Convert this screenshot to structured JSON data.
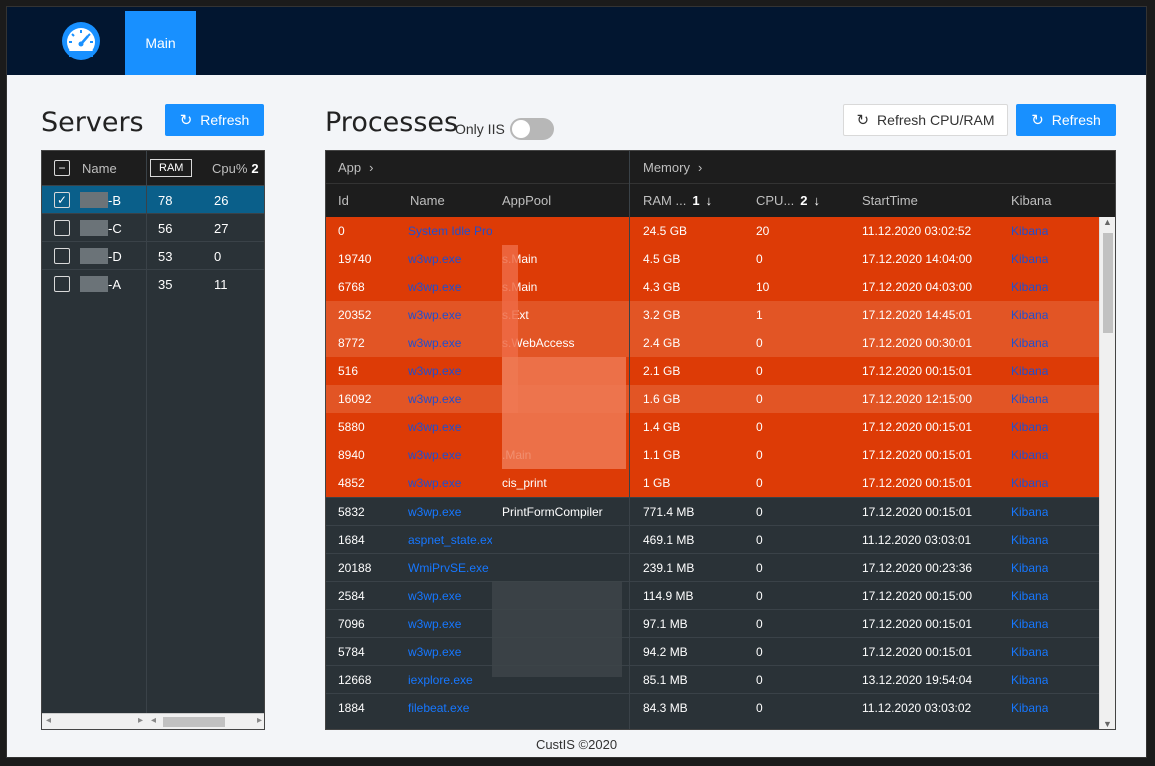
{
  "nav": {
    "tab_main": "Main"
  },
  "servers": {
    "title": "Servers",
    "refresh_label": "Refresh",
    "columns": {
      "name": "Name",
      "ram": "RAM",
      "cpu": "Cpu%",
      "cpu_sort": "2"
    },
    "rows": [
      {
        "name": "-B",
        "ram": "78",
        "cpu": "26",
        "selected": true
      },
      {
        "name": "-C",
        "ram": "56",
        "cpu": "27",
        "selected": false
      },
      {
        "name": "-D",
        "ram": "53",
        "cpu": "0",
        "selected": false
      },
      {
        "name": "-A",
        "ram": "35",
        "cpu": "11",
        "selected": false
      }
    ]
  },
  "processes": {
    "title": "Processes",
    "only_iis_label": "Only IIS",
    "refresh_cpu_ram_label": "Refresh CPU/RAM",
    "refresh_label": "Refresh",
    "groups": {
      "app": "App",
      "memory": "Memory"
    },
    "columns": {
      "id": "Id",
      "name": "Name",
      "apppool": "AppPool",
      "ram": "RAM ...",
      "ram_sort": "1",
      "cpu": "CPU...",
      "cpu_sort": "2",
      "starttime": "StartTime",
      "kibana": "Kibana"
    },
    "rows": [
      {
        "id": "0",
        "name": "System Idle Pro",
        "apppool": "",
        "ram": "24.5 GB",
        "cpu": "20",
        "start": "11.12.2020 03:02:52",
        "kibana": "Kibana",
        "heat": "#dd3b06"
      },
      {
        "id": "19740",
        "name": "w3wp.exe",
        "apppool": "s.Main",
        "ram": "4.5 GB",
        "cpu": "0",
        "start": "17.12.2020 14:04:00",
        "kibana": "Kibana",
        "heat": "#dd3b06"
      },
      {
        "id": "6768",
        "name": "w3wp.exe",
        "apppool": "s.Main",
        "ram": "4.3 GB",
        "cpu": "10",
        "start": "17.12.2020 04:03:00",
        "kibana": "Kibana",
        "heat": "#dd3b06"
      },
      {
        "id": "20352",
        "name": "w3wp.exe",
        "apppool": "s.Ext",
        "ram": "3.2 GB",
        "cpu": "1",
        "start": "17.12.2020 14:45:01",
        "kibana": "Kibana",
        "heat": "#e25525"
      },
      {
        "id": "8772",
        "name": "w3wp.exe",
        "apppool": "s.WebAccess",
        "ram": "2.4 GB",
        "cpu": "0",
        "start": "17.12.2020 00:30:01",
        "kibana": "Kibana",
        "heat": "#e25525"
      },
      {
        "id": "516",
        "name": "w3wp.exe",
        "apppool": "",
        "ram": "2.1 GB",
        "cpu": "0",
        "start": "17.12.2020 00:15:01",
        "kibana": "Kibana",
        "heat": "#dd3b06"
      },
      {
        "id": "16092",
        "name": "w3wp.exe",
        "apppool": "",
        "ram": "1.6 GB",
        "cpu": "0",
        "start": "17.12.2020 12:15:00",
        "kibana": "Kibana",
        "heat": "#e25525"
      },
      {
        "id": "5880",
        "name": "w3wp.exe",
        "apppool": "",
        "ram": "1.4 GB",
        "cpu": "0",
        "start": "17.12.2020 00:15:01",
        "kibana": "Kibana",
        "heat": "#dd3b06"
      },
      {
        "id": "8940",
        "name": "w3wp.exe",
        "apppool": ".Main",
        "ram": "1.1 GB",
        "cpu": "0",
        "start": "17.12.2020 00:15:01",
        "kibana": "Kibana",
        "heat": "#dd3b06"
      },
      {
        "id": "4852",
        "name": "w3wp.exe",
        "apppool": "cis_print",
        "ram": "1 GB",
        "cpu": "0",
        "start": "17.12.2020 00:15:01",
        "kibana": "Kibana",
        "heat": "#dd3b06"
      },
      {
        "id": "5832",
        "name": "w3wp.exe",
        "apppool": "PrintFormCompiler",
        "ram": "771.4 MB",
        "cpu": "0",
        "start": "17.12.2020 00:15:01",
        "kibana": "Kibana",
        "heat": ""
      },
      {
        "id": "1684",
        "name": "aspnet_state.ex",
        "apppool": "",
        "ram": "469.1 MB",
        "cpu": "0",
        "start": "11.12.2020 03:03:01",
        "kibana": "Kibana",
        "heat": ""
      },
      {
        "id": "20188",
        "name": "WmiPrvSE.exe",
        "apppool": "",
        "ram": "239.1 MB",
        "cpu": "0",
        "start": "17.12.2020 00:23:36",
        "kibana": "Kibana",
        "heat": ""
      },
      {
        "id": "2584",
        "name": "w3wp.exe",
        "apppool": "",
        "ram": "114.9 MB",
        "cpu": "0",
        "start": "17.12.2020 00:15:00",
        "kibana": "Kibana",
        "heat": ""
      },
      {
        "id": "7096",
        "name": "w3wp.exe",
        "apppool": "",
        "ram": "97.1 MB",
        "cpu": "0",
        "start": "17.12.2020 00:15:01",
        "kibana": "Kibana",
        "heat": ""
      },
      {
        "id": "5784",
        "name": "w3wp.exe",
        "apppool": "",
        "ram": "94.2 MB",
        "cpu": "0",
        "start": "17.12.2020 00:15:01",
        "kibana": "Kibana",
        "heat": ""
      },
      {
        "id": "12668",
        "name": "iexplore.exe",
        "apppool": "",
        "ram": "85.1 MB",
        "cpu": "0",
        "start": "13.12.2020 19:54:04",
        "kibana": "Kibana",
        "heat": ""
      },
      {
        "id": "1884",
        "name": "filebeat.exe",
        "apppool": "",
        "ram": "84.3 MB",
        "cpu": "0",
        "start": "11.12.2020 03:03:02",
        "kibana": "Kibana",
        "heat": ""
      }
    ]
  },
  "footer": "CustIS ©2020"
}
